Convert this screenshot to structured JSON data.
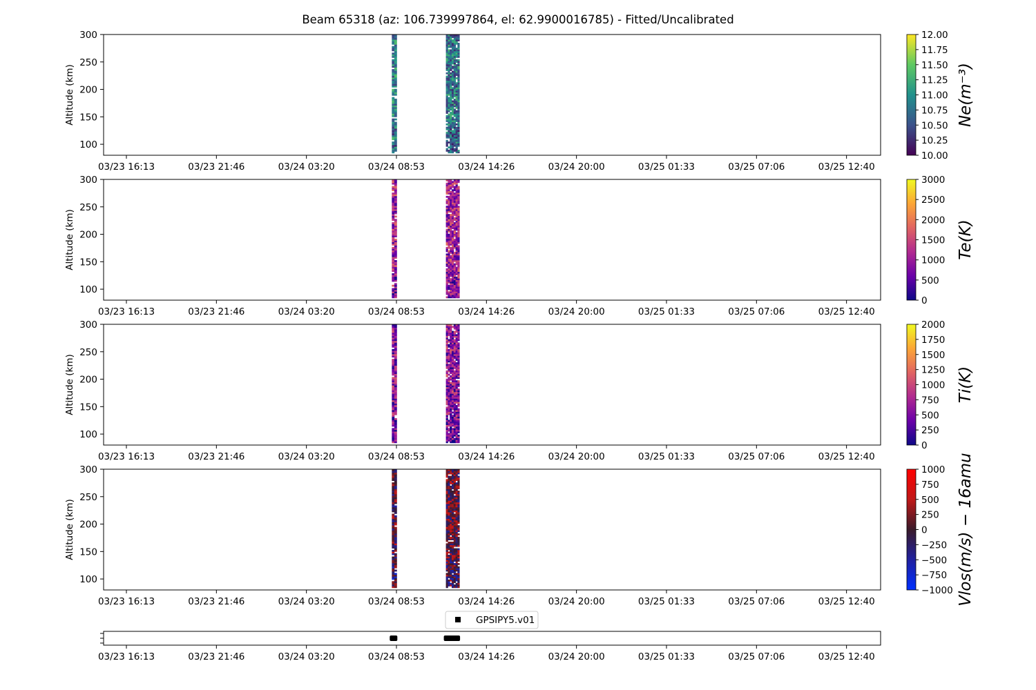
{
  "figure": {
    "title": "Beam 65318 (az: 106.739997864, el: 62.9900016785) - Fitted/Uncalibrated"
  },
  "chart_data": [
    {
      "type": "heatmap",
      "name": "ne",
      "ylabel": "Altitude (km)",
      "ylim": [
        80,
        300
      ],
      "yticks": [
        "300",
        "250",
        "200",
        "150",
        "100"
      ],
      "xticks": [
        "03/23 16:13",
        "03/23 21:46",
        "03/24 03:20",
        "03/24 08:53",
        "03/24 14:26",
        "03/24 20:00",
        "03/25 01:33",
        "03/25 07:06",
        "03/25 12:40"
      ],
      "colorbar": {
        "label": "Ne(m⁻³)",
        "range": [
          10.0,
          12.0
        ],
        "ticks": [
          "12.00",
          "11.75",
          "11.50",
          "11.25",
          "11.00",
          "10.75",
          "10.50",
          "10.25",
          "10.00"
        ],
        "colormap": [
          "#fde725",
          "#5ec962",
          "#21918c",
          "#3b528b",
          "#440154"
        ]
      },
      "data_windows": [
        {
          "start": "03/24 08:35",
          "end": "03/24 08:53",
          "typical_value": 10.9
        },
        {
          "start": "03/24 11:55",
          "end": "03/24 12:45",
          "typical_value": 10.8
        }
      ]
    },
    {
      "type": "heatmap",
      "name": "te",
      "ylabel": "Altitude (km)",
      "ylim": [
        80,
        300
      ],
      "yticks": [
        "300",
        "250",
        "200",
        "150",
        "100"
      ],
      "xticks": [
        "03/23 16:13",
        "03/23 21:46",
        "03/24 03:20",
        "03/24 08:53",
        "03/24 14:26",
        "03/24 20:00",
        "03/25 01:33",
        "03/25 07:06",
        "03/25 12:40"
      ],
      "colorbar": {
        "label": "Te(K)",
        "range": [
          0,
          3000
        ],
        "ticks": [
          "3000",
          "2500",
          "2000",
          "1500",
          "1000",
          "500",
          "0"
        ],
        "colormap": [
          "#f0f921",
          "#fca636",
          "#e16462",
          "#b12a90",
          "#6a00a8",
          "#0d0887"
        ]
      },
      "data_windows": [
        {
          "start": "03/24 08:35",
          "end": "03/24 08:53",
          "typical_value": 1100
        },
        {
          "start": "03/24 11:55",
          "end": "03/24 12:45",
          "typical_value": 1100
        }
      ]
    },
    {
      "type": "heatmap",
      "name": "ti",
      "ylabel": "Altitude (km)",
      "ylim": [
        80,
        300
      ],
      "yticks": [
        "300",
        "250",
        "200",
        "150",
        "100"
      ],
      "xticks": [
        "03/23 16:13",
        "03/23 21:46",
        "03/24 03:20",
        "03/24 08:53",
        "03/24 14:26",
        "03/24 20:00",
        "03/25 01:33",
        "03/25 07:06",
        "03/25 12:40"
      ],
      "colorbar": {
        "label": "Ti(K)",
        "range": [
          0,
          2000
        ],
        "ticks": [
          "2000",
          "1750",
          "1500",
          "1250",
          "1000",
          "750",
          "500",
          "250",
          "0"
        ],
        "colormap": [
          "#f0f921",
          "#fca636",
          "#e16462",
          "#b12a90",
          "#6a00a8",
          "#0d0887"
        ]
      },
      "data_windows": [
        {
          "start": "03/24 08:35",
          "end": "03/24 08:53",
          "typical_value": 600
        },
        {
          "start": "03/24 11:55",
          "end": "03/24 12:45",
          "typical_value": 600
        }
      ]
    },
    {
      "type": "heatmap",
      "name": "vlos",
      "ylabel": "Altitude (km)",
      "ylim": [
        80,
        300
      ],
      "yticks": [
        "300",
        "250",
        "200",
        "150",
        "100"
      ],
      "xticks": [
        "03/23 16:13",
        "03/23 21:46",
        "03/24 03:20",
        "03/24 08:53",
        "03/24 14:26",
        "03/24 20:00",
        "03/25 01:33",
        "03/25 07:06",
        "03/25 12:40"
      ],
      "colorbar": {
        "label": "Vlos(m/s) − 16amu",
        "range": [
          -1000,
          1000
        ],
        "ticks": [
          "1000",
          "750",
          "500",
          "250",
          "0",
          "−250",
          "−500",
          "−750",
          "−1000"
        ],
        "colormap": [
          "#ff0000",
          "#c01818",
          "#3a1a2a",
          "#2020a0",
          "#0030ff"
        ]
      },
      "data_windows": [
        {
          "start": "03/24 08:35",
          "end": "03/24 08:53",
          "typical_value": 0
        },
        {
          "start": "03/24 11:55",
          "end": "03/24 12:45",
          "typical_value": 100
        }
      ]
    },
    {
      "type": "scatter",
      "name": "gps",
      "legend": "GPSIPY5.v01",
      "xticks": [
        "03/23 16:13",
        "03/23 21:46",
        "03/24 03:20",
        "03/24 08:53",
        "03/24 14:26",
        "03/24 20:00",
        "03/25 01:33",
        "03/25 07:06",
        "03/25 12:40"
      ],
      "marker_color": "#000000",
      "data_windows": [
        {
          "start": "03/24 08:35",
          "end": "03/24 08:53"
        },
        {
          "start": "03/24 11:55",
          "end": "03/24 12:45"
        }
      ]
    }
  ]
}
